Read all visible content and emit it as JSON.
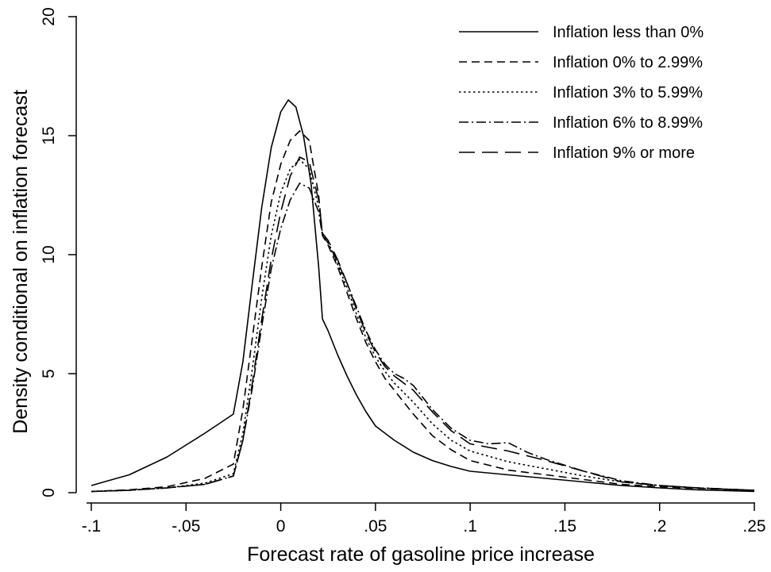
{
  "chart_data": {
    "type": "line",
    "title": "",
    "xlabel": "Forecast rate of gasoline price increase",
    "ylabel": "Density conditional on inflation forecast",
    "xlim": [
      -0.1,
      0.25
    ],
    "ylim": [
      0,
      20
    ],
    "x_ticks": [
      -0.1,
      -0.05,
      0,
      0.05,
      0.1,
      0.15,
      0.2,
      0.25
    ],
    "x_tick_labels": [
      "-.1",
      "-.05",
      "0",
      ".05",
      ".1",
      ".15",
      ".2",
      ".25"
    ],
    "y_ticks": [
      0,
      5,
      10,
      15,
      20
    ],
    "y_tick_labels": [
      "0",
      "5",
      "10",
      "15",
      "20"
    ],
    "grid": false,
    "legend_position": "top-right",
    "series": [
      {
        "name": "Inflation less than 0%",
        "dash": "solid",
        "points": [
          [
            -0.1,
            0.3
          ],
          [
            -0.08,
            0.75
          ],
          [
            -0.06,
            1.5
          ],
          [
            -0.04,
            2.5
          ],
          [
            -0.025,
            3.3
          ],
          [
            -0.02,
            5.5
          ],
          [
            -0.015,
            8.8
          ],
          [
            -0.01,
            12
          ],
          [
            -0.005,
            14.5
          ],
          [
            0,
            16
          ],
          [
            0.004,
            16.5
          ],
          [
            0.008,
            16.2
          ],
          [
            0.012,
            15
          ],
          [
            0.016,
            13
          ],
          [
            0.02,
            9.5
          ],
          [
            0.022,
            7.3
          ],
          [
            0.025,
            6.8
          ],
          [
            0.03,
            5.8
          ],
          [
            0.035,
            4.9
          ],
          [
            0.04,
            4.1
          ],
          [
            0.045,
            3.4
          ],
          [
            0.05,
            2.8
          ],
          [
            0.06,
            2.2
          ],
          [
            0.07,
            1.7
          ],
          [
            0.08,
            1.35
          ],
          [
            0.09,
            1.1
          ],
          [
            0.1,
            0.9
          ],
          [
            0.12,
            0.75
          ],
          [
            0.14,
            0.6
          ],
          [
            0.16,
            0.45
          ],
          [
            0.18,
            0.3
          ],
          [
            0.2,
            0.2
          ],
          [
            0.22,
            0.12
          ],
          [
            0.25,
            0.05
          ]
        ]
      },
      {
        "name": "Inflation 0% to 2.99%",
        "dash": "dash",
        "points": [
          [
            -0.1,
            0.05
          ],
          [
            -0.08,
            0.12
          ],
          [
            -0.06,
            0.25
          ],
          [
            -0.04,
            0.6
          ],
          [
            -0.025,
            1.2
          ],
          [
            -0.02,
            3.5
          ],
          [
            -0.015,
            6.5
          ],
          [
            -0.01,
            9.5
          ],
          [
            -0.005,
            12.2
          ],
          [
            0,
            13.8
          ],
          [
            0.005,
            14.8
          ],
          [
            0.01,
            15.2
          ],
          [
            0.015,
            14.8
          ],
          [
            0.02,
            12.5
          ],
          [
            0.022,
            10.8
          ],
          [
            0.025,
            10.4
          ],
          [
            0.03,
            9.5
          ],
          [
            0.035,
            8.4
          ],
          [
            0.04,
            7.3
          ],
          [
            0.045,
            6.3
          ],
          [
            0.05,
            5.5
          ],
          [
            0.055,
            4.8
          ],
          [
            0.06,
            4.3
          ],
          [
            0.065,
            3.8
          ],
          [
            0.07,
            3.3
          ],
          [
            0.08,
            2.4
          ],
          [
            0.09,
            1.8
          ],
          [
            0.1,
            1.35
          ],
          [
            0.12,
            0.95
          ],
          [
            0.14,
            0.75
          ],
          [
            0.16,
            0.55
          ],
          [
            0.18,
            0.35
          ],
          [
            0.2,
            0.25
          ],
          [
            0.22,
            0.18
          ],
          [
            0.25,
            0.1
          ]
        ]
      },
      {
        "name": "Inflation 3% to 5.99%",
        "dash": "dot",
        "points": [
          [
            -0.1,
            0.05
          ],
          [
            -0.08,
            0.1
          ],
          [
            -0.06,
            0.2
          ],
          [
            -0.04,
            0.4
          ],
          [
            -0.025,
            0.8
          ],
          [
            -0.02,
            2.5
          ],
          [
            -0.015,
            5.2
          ],
          [
            -0.01,
            8.2
          ],
          [
            -0.005,
            10.8
          ],
          [
            0,
            12.6
          ],
          [
            0.005,
            13.6
          ],
          [
            0.01,
            14
          ],
          [
            0.015,
            13.6
          ],
          [
            0.02,
            12
          ],
          [
            0.022,
            10.9
          ],
          [
            0.025,
            10.5
          ],
          [
            0.03,
            9.6
          ],
          [
            0.035,
            8.6
          ],
          [
            0.04,
            7.5
          ],
          [
            0.045,
            6.5
          ],
          [
            0.05,
            5.7
          ],
          [
            0.055,
            5.1
          ],
          [
            0.06,
            4.6
          ],
          [
            0.065,
            4.2
          ],
          [
            0.07,
            3.8
          ],
          [
            0.08,
            2.9
          ],
          [
            0.09,
            2.2
          ],
          [
            0.1,
            1.75
          ],
          [
            0.12,
            1.3
          ],
          [
            0.14,
            1
          ],
          [
            0.16,
            0.7
          ],
          [
            0.18,
            0.45
          ],
          [
            0.2,
            0.3
          ],
          [
            0.22,
            0.2
          ],
          [
            0.25,
            0.1
          ]
        ]
      },
      {
        "name": "Inflation 6% to 8.99%",
        "dash": "dashdot",
        "points": [
          [
            -0.1,
            0.05
          ],
          [
            -0.08,
            0.1
          ],
          [
            -0.06,
            0.2
          ],
          [
            -0.04,
            0.35
          ],
          [
            -0.025,
            0.7
          ],
          [
            -0.02,
            2.2
          ],
          [
            -0.015,
            4.4
          ],
          [
            -0.01,
            7
          ],
          [
            -0.005,
            9.4
          ],
          [
            0,
            11.1
          ],
          [
            0.005,
            12.3
          ],
          [
            0.01,
            13
          ],
          [
            0.015,
            12.8
          ],
          [
            0.02,
            11.8
          ],
          [
            0.022,
            10.8
          ],
          [
            0.025,
            10.5
          ],
          [
            0.03,
            9.7
          ],
          [
            0.035,
            8.8
          ],
          [
            0.04,
            7.8
          ],
          [
            0.045,
            6.8
          ],
          [
            0.05,
            6
          ],
          [
            0.055,
            5.4
          ],
          [
            0.06,
            5
          ],
          [
            0.065,
            4.8
          ],
          [
            0.07,
            4.5
          ],
          [
            0.08,
            3.5
          ],
          [
            0.09,
            2.7
          ],
          [
            0.1,
            2.2
          ],
          [
            0.11,
            2.05
          ],
          [
            0.12,
            2.1
          ],
          [
            0.13,
            1.7
          ],
          [
            0.14,
            1.4
          ],
          [
            0.16,
            0.9
          ],
          [
            0.18,
            0.5
          ],
          [
            0.2,
            0.3
          ],
          [
            0.22,
            0.2
          ],
          [
            0.25,
            0.1
          ]
        ]
      },
      {
        "name": "Inflation 9% or more",
        "dash": "longdash",
        "points": [
          [
            -0.1,
            0.05
          ],
          [
            -0.08,
            0.1
          ],
          [
            -0.06,
            0.2
          ],
          [
            -0.04,
            0.35
          ],
          [
            -0.025,
            0.7
          ],
          [
            -0.02,
            2.2
          ],
          [
            -0.015,
            4.6
          ],
          [
            -0.01,
            7.3
          ],
          [
            -0.005,
            9.8
          ],
          [
            0,
            11.8
          ],
          [
            0.005,
            13.3
          ],
          [
            0.01,
            14.1
          ],
          [
            0.015,
            13.9
          ],
          [
            0.02,
            12.3
          ],
          [
            0.022,
            10.9
          ],
          [
            0.025,
            10.6
          ],
          [
            0.03,
            9.8
          ],
          [
            0.035,
            8.8
          ],
          [
            0.04,
            7.7
          ],
          [
            0.045,
            6.7
          ],
          [
            0.05,
            5.9
          ],
          [
            0.055,
            5.3
          ],
          [
            0.06,
            4.9
          ],
          [
            0.065,
            4.6
          ],
          [
            0.07,
            4.3
          ],
          [
            0.08,
            3.4
          ],
          [
            0.09,
            2.6
          ],
          [
            0.1,
            2.05
          ],
          [
            0.11,
            1.9
          ],
          [
            0.12,
            1.75
          ],
          [
            0.14,
            1.35
          ],
          [
            0.16,
            0.9
          ],
          [
            0.18,
            0.45
          ],
          [
            0.2,
            0.3
          ],
          [
            0.22,
            0.2
          ],
          [
            0.25,
            0.1
          ]
        ]
      }
    ]
  }
}
